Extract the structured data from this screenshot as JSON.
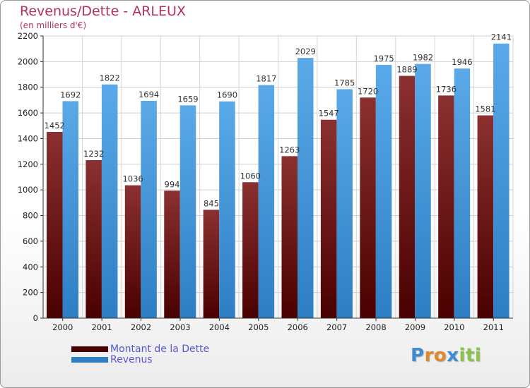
{
  "colors": {
    "title": "#b3305f",
    "dette_top": "#8b3030",
    "dette_bottom": "#4a0000",
    "revenus_top": "#5aa9e8",
    "revenus_bottom": "#2e7ec4",
    "legend_text": "#5a57d6"
  },
  "logo": {
    "letters": [
      "P",
      "r",
      "o",
      "x",
      "i",
      "t",
      "i"
    ],
    "colors": [
      "#3f8ad6",
      "#e0892a",
      "#e0892a",
      "#3f8ad6",
      "#8bc34a",
      "#8bc34a",
      "#8bc34a"
    ]
  },
  "chart_data": {
    "type": "bar",
    "title": "Revenus/Dette - ARLEUX",
    "subtitle": "(en milliers d'€)",
    "categories": [
      "2000",
      "2001",
      "2002",
      "2003",
      "2004",
      "2005",
      "2006",
      "2007",
      "2008",
      "2009",
      "2010",
      "2011"
    ],
    "series": [
      {
        "name": "Montant de la Dette",
        "values": [
          1452,
          1232,
          1036,
          994,
          845,
          1060,
          1263,
          1547,
          1720,
          1889,
          1736,
          1581
        ],
        "labels": [
          "1452",
          "1232",
          "1036",
          "994",
          "845",
          "1060",
          "1263",
          "1547",
          "1720",
          "1889",
          "1736",
          "1581"
        ]
      },
      {
        "name": "Revenus",
        "values": [
          1692,
          1822,
          1694,
          1659,
          1690,
          1817,
          2029,
          1785,
          1975,
          1982,
          1946,
          2141
        ],
        "labels": [
          "1692",
          "1822",
          "1694",
          "1659",
          "1690",
          "1817",
          "2029",
          "1785",
          "1975",
          "1982",
          "1946",
          "2141"
        ]
      }
    ],
    "ylim": [
      0,
      2200
    ],
    "yticks": [
      "0",
      "200",
      "400",
      "600",
      "800",
      "1000",
      "1200",
      "1400",
      "1600",
      "1800",
      "2000",
      "2200"
    ],
    "grid": true,
    "legend": "bottom-left"
  }
}
